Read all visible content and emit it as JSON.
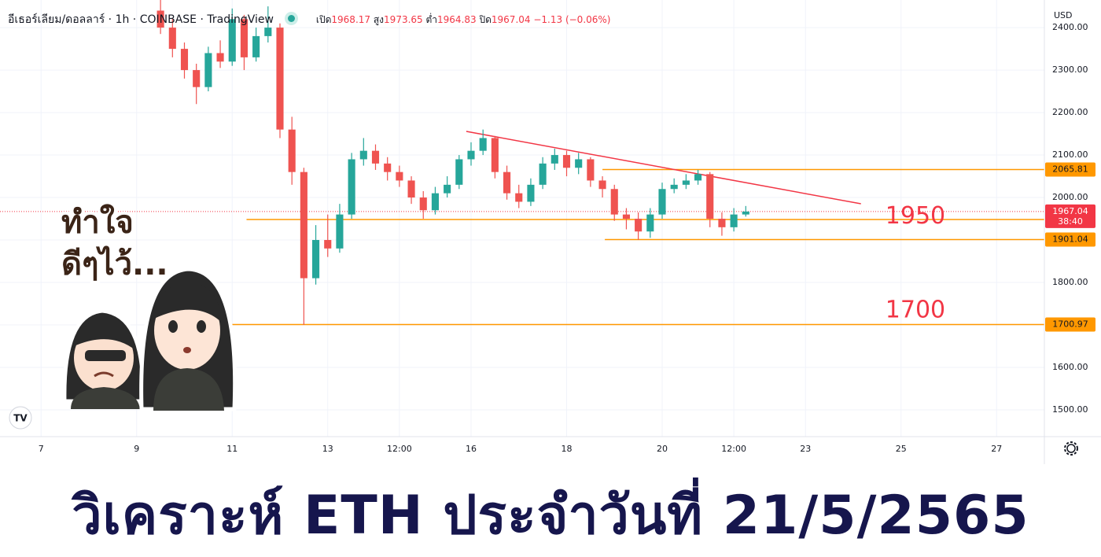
{
  "chart_data": {
    "type": "candlestick",
    "header": {
      "symbol": "อีเธอร์เลียม/ดอลลาร์",
      "interval": "1h",
      "exchange": "COINBASE",
      "source": "TradingView",
      "ohlc": [
        {
          "label": "เปิด",
          "value": 1968.17
        },
        {
          "label": "สูง",
          "value": 1973.65
        },
        {
          "label": "ต่ำ",
          "value": 1964.83
        },
        {
          "label": "ปิด",
          "value": 1967.04
        }
      ],
      "change": "−1.13 (−0.06%)"
    },
    "currency": "USD",
    "colors": {
      "up": "#26a69a",
      "down": "#ef5350"
    },
    "x": [
      9.5,
      9.75,
      10,
      10.25,
      10.5,
      10.75,
      11,
      11.25,
      11.5,
      11.75,
      12,
      12.25,
      12.5,
      12.75,
      13,
      13.25,
      13.5,
      13.75,
      14,
      14.25,
      14.5,
      14.75,
      15,
      15.25,
      15.5,
      15.75,
      16,
      16.25,
      16.5,
      16.75,
      17,
      17.25,
      17.5,
      17.75,
      18,
      18.25,
      18.5,
      18.75,
      19,
      19.25,
      19.5,
      19.75,
      20,
      20.25,
      20.5,
      20.75,
      21,
      21.25,
      21.5,
      21.75
    ],
    "open": [
      2440,
      2400,
      2350,
      2300,
      2260,
      2340,
      2320,
      2420,
      2330,
      2380,
      2400,
      2160,
      2060,
      1810,
      1900,
      1880,
      1960,
      2090,
      2110,
      2080,
      2060,
      2040,
      2000,
      1970,
      2010,
      2030,
      2090,
      2110,
      2140,
      2060,
      2010,
      1990,
      2030,
      2080,
      2100,
      2070,
      2090,
      2040,
      2020,
      1960,
      1950,
      1920,
      1960,
      2020,
      2030,
      2040,
      2055,
      1950,
      1930,
      1960
    ],
    "high": [
      2465,
      2420,
      2365,
      2315,
      2355,
      2370,
      2445,
      2430,
      2400,
      2450,
      2410,
      2190,
      2070,
      1935,
      1960,
      1985,
      2105,
      2140,
      2125,
      2095,
      2075,
      2050,
      2015,
      2025,
      2050,
      2100,
      2130,
      2160,
      2145,
      2075,
      2030,
      2045,
      2095,
      2115,
      2110,
      2105,
      2095,
      2050,
      2030,
      1975,
      1965,
      1975,
      2035,
      2045,
      2055,
      2065,
      2060,
      1965,
      1975,
      1980
    ],
    "low": [
      2385,
      2330,
      2280,
      2220,
      2250,
      2305,
      2310,
      2300,
      2320,
      2365,
      2140,
      2030,
      1700,
      1795,
      1860,
      1870,
      1950,
      2075,
      2065,
      2040,
      2025,
      1985,
      1950,
      1960,
      2000,
      2020,
      2075,
      2100,
      2045,
      1995,
      1975,
      1980,
      2020,
      2065,
      2050,
      2055,
      2025,
      2000,
      1945,
      1925,
      1900,
      1905,
      1950,
      2010,
      2020,
      2030,
      1930,
      1910,
      1920,
      1955
    ],
    "close": [
      2400,
      2350,
      2300,
      2260,
      2340,
      2320,
      2420,
      2330,
      2380,
      2400,
      2160,
      2060,
      1810,
      1900,
      1880,
      1960,
      2090,
      2110,
      2080,
      2060,
      2040,
      2000,
      1970,
      2010,
      2030,
      2090,
      2110,
      2140,
      2060,
      2010,
      1990,
      2030,
      2080,
      2100,
      2070,
      2090,
      2040,
      2020,
      1960,
      1950,
      1920,
      1960,
      2020,
      2030,
      2040,
      2055,
      1950,
      1930,
      1960,
      1967.04
    ],
    "xlim": [
      6.14,
      28.0
    ],
    "xticks": [
      7,
      9,
      11,
      13,
      {
        "value": 14.5,
        "label": "12:00"
      },
      16,
      18,
      20,
      {
        "value": 21.5,
        "label": "12:00"
      },
      23,
      25,
      27
    ],
    "ylim": [
      1437,
      2465
    ],
    "yticks": [
      {
        "value": 1500,
        "label": "1500.00"
      },
      {
        "value": 1600,
        "label": "1600.00"
      },
      {
        "value": 1700,
        "label": "1700.00"
      },
      {
        "value": 1800,
        "label": "1800.00"
      },
      {
        "value": 1900,
        "label": "1900.00"
      },
      {
        "value": 2000,
        "label": "2000.00"
      },
      {
        "value": 2100,
        "label": "2100.00"
      },
      {
        "value": 2200,
        "label": "2200.00"
      },
      {
        "value": 2300,
        "label": "2300.00"
      },
      {
        "value": 2400,
        "label": "2400.00"
      }
    ],
    "grid": true,
    "levels": [
      {
        "value": 2065.81,
        "from": 18.75,
        "color": "#ff9800"
      },
      {
        "value": 1948.12,
        "from": 11.3,
        "color": "#ff9800"
      },
      {
        "value": 1901.04,
        "from": 18.8,
        "color": "#ff9800"
      },
      {
        "value": 1700.97,
        "from": 10.9,
        "color": "#ff9800"
      }
    ],
    "last_price": {
      "value": 1967.04,
      "countdown": "38:40",
      "color": "#f23645"
    },
    "trendline": {
      "x": [
        15.9,
        24.16
      ],
      "y": [
        2155.6,
        1985.2
      ],
      "color": "#f23645"
    },
    "annotations": [
      {
        "text": "1950",
        "x": 25.3,
        "y": 1955
      },
      {
        "text": "1700",
        "x": 25.3,
        "y": 1733
      }
    ]
  },
  "overlay": {
    "lines": [
      "ทำใจ",
      "ดีๆไว้..."
    ]
  },
  "banner": {
    "title": "วิเคราะห์ ETH ประจำวันที่ 21/5/2565"
  }
}
